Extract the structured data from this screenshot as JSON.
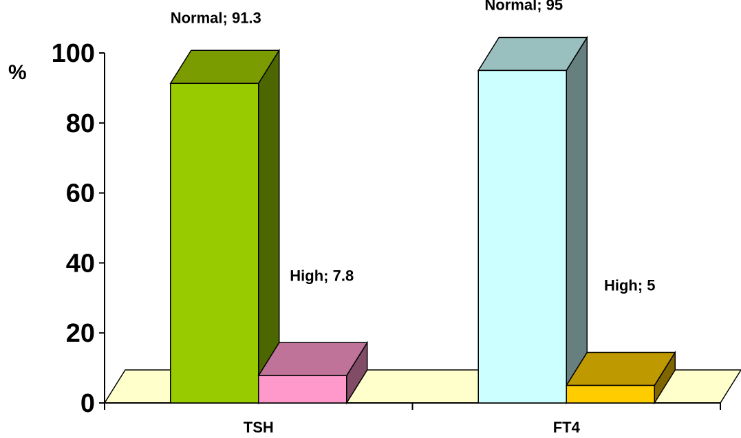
{
  "chart_data": {
    "type": "bar",
    "ylabel": "%",
    "ylim": [
      0,
      100
    ],
    "yticks": [
      0,
      20,
      40,
      60,
      80,
      100
    ],
    "categories": [
      "TSH",
      "FT4"
    ],
    "bars": [
      {
        "category": "TSH",
        "label": "Normal; 91.3",
        "value": 91.3,
        "front": "#99cc00",
        "top": "#7a9c00",
        "side": "#4c6600"
      },
      {
        "category": "TSH",
        "label": "High; 7.8",
        "value": 7.8,
        "front": "#ff99cc",
        "top": "#bf7399",
        "side": "#804c66"
      },
      {
        "category": "FT4",
        "label": "Normal; 95",
        "value": 95,
        "front": "#ccffff",
        "top": "#99bfbf",
        "side": "#668080"
      },
      {
        "category": "FT4",
        "label": "High; 5",
        "value": 5,
        "front": "#ffcc00",
        "top": "#bf9900",
        "side": "#806600"
      }
    ],
    "floor_color": "#ffffcc"
  }
}
